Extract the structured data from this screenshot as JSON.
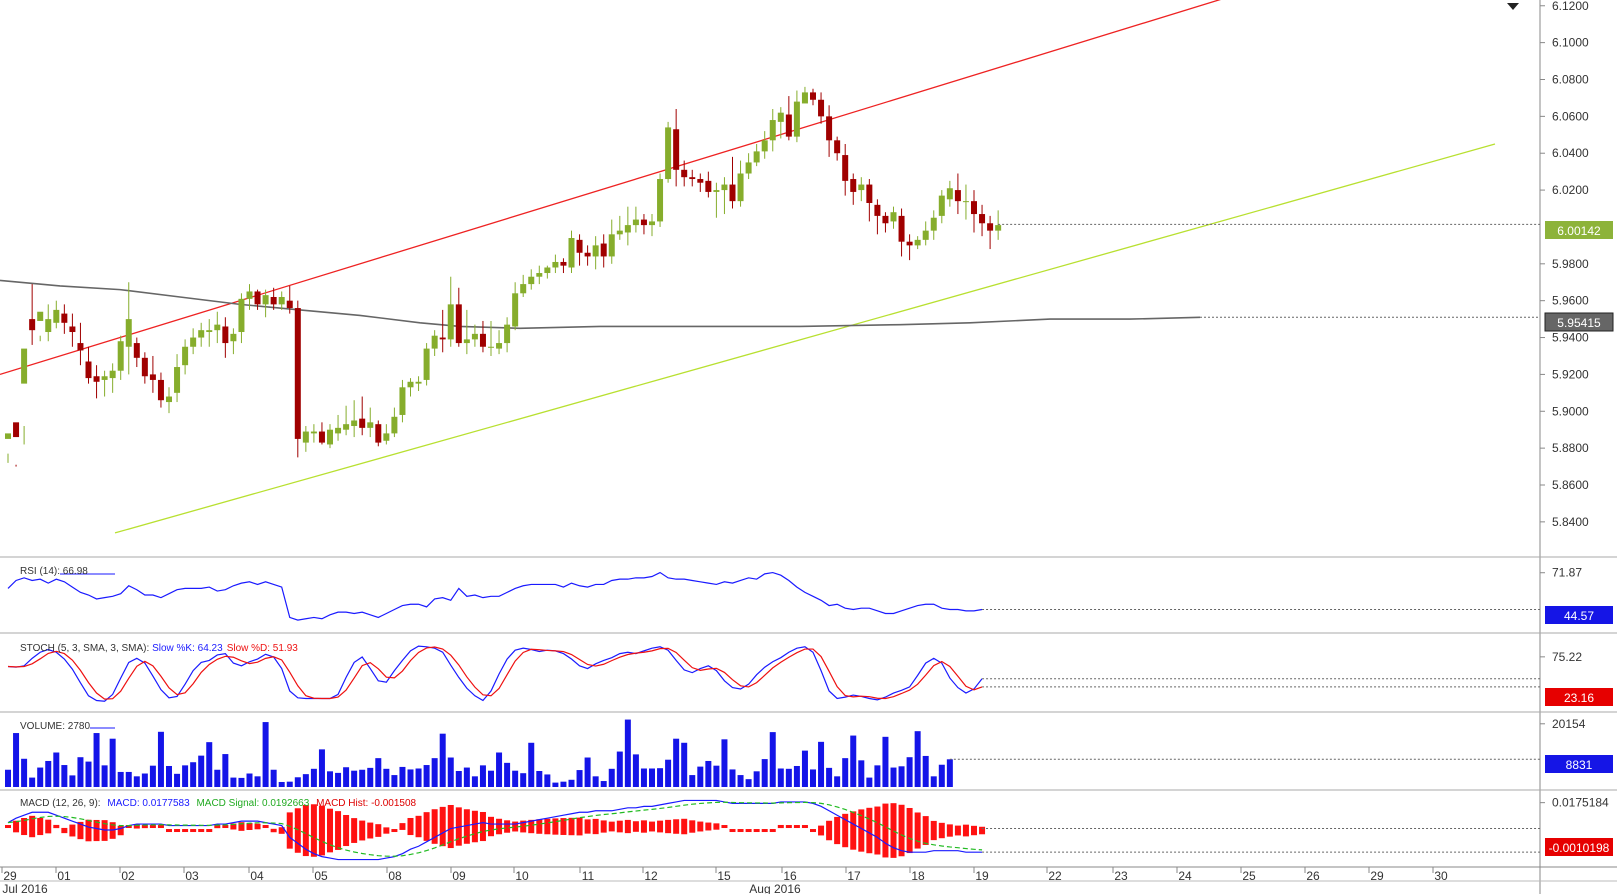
{
  "chart_data": {
    "type": "candlestick",
    "price_axis": {
      "ticks": [
        "6.1200",
        "6.1000",
        "6.0800",
        "6.0600",
        "6.0400",
        "6.0200",
        "5.9800",
        "5.9600",
        "5.9400",
        "5.9200",
        "5.9000",
        "5.8800",
        "5.8600",
        "5.8400"
      ],
      "ylim": [
        5.8345,
        6.1215
      ]
    },
    "last_price": "6.00142",
    "ma_value": "5.95415",
    "candles": [
      [
        5.885,
        5.888,
        5.872,
        5.877
      ],
      [
        5.894,
        5.886,
        5.871,
        5.87
      ],
      [
        5.915,
        5.934,
        5.892,
        5.882
      ],
      [
        5.95,
        5.944,
        5.969,
        5.936
      ],
      [
        5.949,
        5.954,
        5.941,
        5.938
      ],
      [
        5.943,
        5.95,
        5.958,
        5.938
      ],
      [
        5.948,
        5.955,
        5.96,
        5.945
      ],
      [
        5.953,
        5.948,
        5.958,
        5.942
      ],
      [
        5.946,
        5.943,
        5.953,
        5.935
      ],
      [
        5.937,
        5.933,
        5.948,
        5.925
      ],
      [
        5.927,
        5.918,
        5.935,
        5.915
      ],
      [
        5.919,
        5.916,
        5.925,
        5.907
      ],
      [
        5.917,
        5.919,
        5.922,
        5.908
      ],
      [
        5.918,
        5.922,
        5.926,
        5.91
      ],
      [
        5.922,
        5.938,
        5.941,
        5.917
      ],
      [
        5.935,
        5.95,
        5.97,
        5.92
      ],
      [
        5.937,
        5.929,
        5.94,
        5.924
      ],
      [
        5.929,
        5.919,
        5.932,
        5.915
      ],
      [
        5.92,
        5.917,
        5.93,
        5.91
      ],
      [
        5.917,
        5.906,
        5.921,
        5.902
      ],
      [
        5.905,
        5.908,
        5.913,
        5.899
      ],
      [
        5.91,
        5.924,
        5.931,
        5.905
      ],
      [
        5.925,
        5.935,
        5.939,
        5.92
      ],
      [
        5.935,
        5.94,
        5.945,
        5.931
      ],
      [
        5.94,
        5.944,
        5.948,
        5.935
      ],
      [
        5.943,
        5.944,
        5.95,
        5.935
      ],
      [
        5.944,
        5.947,
        5.954,
        5.937
      ],
      [
        5.946,
        5.937,
        5.951,
        5.929
      ],
      [
        5.938,
        5.942,
        5.945,
        5.931
      ],
      [
        5.943,
        5.961,
        5.964,
        5.937
      ],
      [
        5.961,
        5.965,
        5.969,
        5.955
      ],
      [
        5.965,
        5.958,
        5.966,
        5.955
      ],
      [
        5.958,
        5.963,
        5.966,
        5.951
      ],
      [
        5.962,
        5.958,
        5.967,
        5.955
      ],
      [
        5.958,
        5.962,
        5.965,
        5.955
      ],
      [
        5.96,
        5.956,
        5.968,
        5.953
      ],
      [
        5.956,
        5.885,
        5.96,
        5.875
      ],
      [
        5.883,
        5.889,
        5.892,
        5.878
      ],
      [
        5.888,
        5.889,
        5.893,
        5.883
      ],
      [
        5.889,
        5.883,
        5.894,
        5.882
      ],
      [
        5.882,
        5.89,
        5.893,
        5.88
      ],
      [
        5.888,
        5.891,
        5.898,
        5.884
      ],
      [
        5.89,
        5.893,
        5.903,
        5.887
      ],
      [
        5.892,
        5.895,
        5.906,
        5.886
      ],
      [
        5.896,
        5.891,
        5.908,
        5.887
      ],
      [
        5.891,
        5.894,
        5.902,
        5.886
      ],
      [
        5.893,
        5.883,
        5.895,
        5.881
      ],
      [
        5.884,
        5.888,
        5.893,
        5.882
      ],
      [
        5.888,
        5.897,
        5.902,
        5.886
      ],
      [
        5.898,
        5.913,
        5.917,
        5.894
      ],
      [
        5.913,
        5.916,
        5.918,
        5.908
      ],
      [
        5.915,
        5.916,
        5.919,
        5.911
      ],
      [
        5.917,
        5.934,
        5.937,
        5.914
      ],
      [
        5.934,
        5.941,
        5.944,
        5.93
      ],
      [
        5.94,
        5.939,
        5.955,
        5.932
      ],
      [
        5.939,
        5.958,
        5.973,
        5.935
      ],
      [
        5.958,
        5.937,
        5.967,
        5.935
      ],
      [
        5.937,
        5.939,
        5.955,
        5.931
      ],
      [
        5.939,
        5.942,
        5.947,
        5.935
      ],
      [
        5.942,
        5.935,
        5.949,
        5.932
      ],
      [
        5.935,
        5.935,
        5.949,
        5.93
      ],
      [
        5.934,
        5.937,
        5.944,
        5.931
      ],
      [
        5.937,
        5.947,
        5.951,
        5.932
      ],
      [
        5.946,
        5.964,
        5.97,
        5.944
      ],
      [
        5.964,
        5.969,
        5.974,
        5.962
      ],
      [
        5.969,
        5.973,
        5.977,
        5.966
      ],
      [
        5.973,
        5.975,
        5.979,
        5.969
      ],
      [
        5.975,
        5.978,
        5.979,
        5.972
      ],
      [
        5.978,
        5.981,
        5.985,
        5.975
      ],
      [
        5.981,
        5.979,
        5.983,
        5.975
      ],
      [
        5.978,
        5.994,
        5.998,
        5.975
      ],
      [
        5.993,
        5.986,
        5.996,
        5.979
      ],
      [
        5.986,
        5.984,
        5.99,
        5.979
      ],
      [
        5.984,
        5.99,
        5.995,
        5.977
      ],
      [
        5.991,
        5.984,
        5.996,
        5.978
      ],
      [
        5.984,
        5.996,
        6.004,
        5.98
      ],
      [
        5.996,
        5.998,
        6.006,
        5.993
      ],
      [
        5.997,
        6.001,
        6.011,
        5.99
      ],
      [
        6.001,
        6.004,
        6.011,
        5.997
      ],
      [
        6.004,
        6.001,
        6.007,
        5.996
      ],
      [
        6.001,
        6.003,
        6.007,
        5.995
      ],
      [
        6.003,
        6.026,
        6.029,
        6.0
      ],
      [
        6.026,
        6.054,
        6.057,
        6.024
      ],
      [
        6.053,
        6.031,
        6.064,
        6.022
      ],
      [
        6.031,
        6.027,
        6.036,
        6.022
      ],
      [
        6.027,
        6.026,
        6.031,
        6.022
      ],
      [
        6.026,
        6.024,
        6.029,
        6.019
      ],
      [
        6.025,
        6.019,
        6.03,
        6.016
      ],
      [
        6.019,
        6.02,
        6.024,
        6.005
      ],
      [
        6.02,
        6.023,
        6.027,
        6.007
      ],
      [
        6.023,
        6.014,
        6.038,
        6.01
      ],
      [
        6.014,
        6.029,
        6.036,
        6.011
      ],
      [
        6.029,
        6.035,
        6.04,
        6.026
      ],
      [
        6.035,
        6.041,
        6.045,
        6.033
      ],
      [
        6.041,
        6.047,
        6.052,
        6.037
      ],
      [
        6.047,
        6.058,
        6.064,
        6.041
      ],
      [
        6.057,
        6.062,
        6.065,
        6.048
      ],
      [
        6.061,
        6.049,
        6.071,
        6.047
      ],
      [
        6.049,
        6.068,
        6.074,
        6.046
      ],
      [
        6.067,
        6.073,
        6.076,
        6.068
      ],
      [
        6.073,
        6.069,
        6.075,
        6.066
      ],
      [
        6.069,
        6.06,
        6.073,
        6.056
      ],
      [
        6.06,
        6.047,
        6.066,
        6.038
      ],
      [
        6.047,
        6.04,
        6.049,
        6.036
      ],
      [
        6.039,
        6.025,
        6.045,
        6.017
      ],
      [
        6.026,
        6.019,
        6.029,
        6.012
      ],
      [
        6.02,
        6.023,
        6.027,
        6.014
      ],
      [
        6.023,
        6.013,
        6.026,
        6.003
      ],
      [
        6.012,
        6.006,
        6.015,
        5.996
      ],
      [
        6.006,
        6.002,
        6.008,
        5.997
      ],
      [
        6.003,
        6.008,
        6.011,
        5.999
      ],
      [
        6.006,
        5.992,
        6.01,
        5.984
      ],
      [
        5.992,
        5.99,
        5.996,
        5.982
      ],
      [
        5.99,
        5.993,
        5.995,
        5.988
      ],
      [
        5.993,
        5.998,
        6.003,
        5.99
      ],
      [
        5.998,
        6.005,
        6.009,
        5.993
      ],
      [
        6.006,
        6.017,
        6.02,
        6.002
      ],
      [
        6.015,
        6.021,
        6.025,
        6.011
      ],
      [
        6.02,
        6.014,
        6.029,
        6.007
      ],
      [
        6.014,
        6.014,
        6.023,
        6.004
      ],
      [
        6.014,
        6.007,
        6.02,
        5.997
      ],
      [
        6.007,
        6.002,
        6.012,
        5.995
      ],
      [
        6.002,
        5.998,
        6.006,
        5.988
      ],
      [
        5.998,
        6.001,
        6.009,
        5.993
      ]
    ],
    "ma_line": [
      [
        0,
        5.971
      ],
      [
        60,
        5.968
      ],
      [
        120,
        5.966
      ],
      [
        180,
        5.962
      ],
      [
        240,
        5.958
      ],
      [
        300,
        5.955
      ],
      [
        360,
        5.952
      ],
      [
        420,
        5.948
      ],
      [
        460,
        5.946
      ],
      [
        520,
        5.945
      ],
      [
        600,
        5.946
      ],
      [
        700,
        5.946
      ],
      [
        800,
        5.946
      ],
      [
        900,
        5.947
      ],
      [
        970,
        5.948
      ],
      [
        1050,
        5.95
      ],
      [
        1130,
        5.95
      ],
      [
        1200,
        5.951
      ]
    ],
    "channel": {
      "upper": [
        [
          0,
          5.92
        ],
        [
          1230,
          6.125
        ]
      ],
      "lower": [
        [
          115,
          5.834
        ],
        [
          1495,
          6.045
        ]
      ]
    },
    "x_axis": {
      "labels": [
        {
          "x": 10,
          "text": "29"
        },
        {
          "x": 64,
          "text": "01"
        },
        {
          "x": 128,
          "text": "02"
        },
        {
          "x": 192,
          "text": "03"
        },
        {
          "x": 257,
          "text": "04"
        },
        {
          "x": 321,
          "text": "05"
        },
        {
          "x": 395,
          "text": "08"
        },
        {
          "x": 459,
          "text": "09"
        },
        {
          "x": 522,
          "text": "10"
        },
        {
          "x": 588,
          "text": "11"
        },
        {
          "x": 651,
          "text": "12"
        },
        {
          "x": 724,
          "text": "15"
        },
        {
          "x": 790,
          "text": "16"
        },
        {
          "x": 854,
          "text": "17"
        },
        {
          "x": 918,
          "text": "18"
        },
        {
          "x": 982,
          "text": "19"
        },
        {
          "x": 1055,
          "text": "22"
        },
        {
          "x": 1121,
          "text": "23"
        },
        {
          "x": 1185,
          "text": "24"
        },
        {
          "x": 1249,
          "text": "25"
        },
        {
          "x": 1313,
          "text": "26"
        },
        {
          "x": 1377,
          "text": "29"
        },
        {
          "x": 1441,
          "text": "30"
        }
      ],
      "period_labels": [
        {
          "x": 25,
          "text": "Jul 2016"
        },
        {
          "x": 775,
          "text": "Aug 2016"
        }
      ]
    },
    "rsi": {
      "label": "RSI (14): 66.98",
      "tick": "71.87",
      "value_badge": "44.57",
      "values": [
        60,
        66,
        68,
        66,
        67,
        64,
        67,
        65,
        61,
        57,
        55,
        52,
        53,
        54,
        56,
        62,
        59,
        55,
        55,
        53,
        56,
        59,
        60,
        60,
        60,
        61,
        58,
        59,
        62,
        64,
        65,
        63,
        65,
        63,
        61,
        38,
        36,
        37,
        38,
        37,
        40,
        42,
        42,
        41,
        42,
        40,
        38,
        41,
        44,
        47,
        48,
        48,
        46,
        52,
        53,
        51,
        60,
        54,
        55,
        53,
        54,
        54,
        57,
        60,
        62,
        63,
        63,
        63,
        63,
        61,
        64,
        62,
        61,
        63,
        63,
        66,
        67,
        67,
        68,
        68,
        69,
        72,
        68,
        67,
        67,
        66,
        65,
        64,
        63,
        65,
        64,
        66,
        68,
        67,
        71,
        72,
        70,
        66,
        61,
        57,
        54,
        51,
        47,
        48,
        45,
        44,
        45,
        45,
        43,
        41,
        41,
        43,
        45,
        47,
        48,
        48,
        45,
        44,
        44,
        43,
        43,
        44
      ]
    },
    "stoch": {
      "label": "STOCH (5, 3, SMA, 3, SMA): Slow %K: 64.23, Slow %D: 51.93",
      "tick": "75.22",
      "value_badge": "23.16",
      "k": [
        61,
        60,
        62,
        73,
        82,
        86,
        82,
        72,
        57,
        37,
        18,
        11,
        10,
        20,
        44,
        67,
        73,
        66,
        47,
        27,
        15,
        17,
        35,
        55,
        67,
        70,
        78,
        80,
        66,
        62,
        68,
        72,
        79,
        75,
        58,
        25,
        15,
        14,
        14,
        14,
        14,
        20,
        45,
        67,
        75,
        58,
        40,
        38,
        55,
        70,
        84,
        91,
        90,
        88,
        82,
        63,
        45,
        29,
        18,
        11,
        25,
        50,
        72,
        85,
        88,
        86,
        83,
        85,
        84,
        80,
        72,
        62,
        58,
        65,
        70,
        74,
        80,
        82,
        80,
        84,
        88,
        90,
        85,
        70,
        56,
        52,
        58,
        62,
        55,
        40,
        30,
        28,
        35,
        49,
        60,
        68,
        74,
        82,
        88,
        90,
        82,
        55,
        25,
        14,
        16,
        19,
        17,
        14,
        12,
        16,
        22,
        26,
        31,
        48,
        66,
        73,
        66,
        44,
        30,
        22,
        28,
        43
      ]
    },
    "volume": {
      "label": "VOLUME: 2780",
      "tick": "20154",
      "value_badge": "8831",
      "values": [
        5500,
        17200,
        9000,
        3000,
        6200,
        8300,
        11000,
        7000,
        3700,
        9500,
        8100,
        17200,
        6900,
        15400,
        4800,
        4800,
        3400,
        4300,
        6800,
        17600,
        6700,
        4200,
        6900,
        7900,
        10000,
        14300,
        5500,
        10500,
        3000,
        2900,
        4300,
        3400,
        20700,
        5500,
        1600,
        1700,
        3100,
        4100,
        5800,
        12000,
        5000,
        4500,
        6300,
        5200,
        5500,
        6100,
        9200,
        5800,
        3800,
        6400,
        5600,
        5900,
        7000,
        9200,
        17000,
        9400,
        5100,
        6200,
        3400,
        6900,
        5200,
        11000,
        7700,
        5200,
        4400,
        14100,
        5100,
        4000,
        1400,
        1700,
        2300,
        5400,
        9400,
        3400,
        1900,
        5800,
        11300,
        21500,
        10400,
        5900,
        5900,
        6000,
        8700,
        15400,
        14100,
        3800,
        6500,
        8300,
        6800,
        15200,
        5600,
        3800,
        2500,
        5000,
        8900,
        17500,
        5900,
        5800,
        6700,
        11600,
        5600,
        14400,
        6100,
        3400,
        9200,
        16400,
        8500,
        3000,
        6900,
        16000,
        6200,
        6600,
        9500,
        17800,
        9900,
        3400,
        7100,
        8831
      ]
    },
    "macd": {
      "label_prefix": "MACD (12, 26, 9):",
      "macd_label": "MACD: 0.0177583",
      "signal_label": "MACD Signal: 0.0192663",
      "hist_label": "MACD Hist: -0.001508",
      "tick": "0.0175184",
      "value_badge": "-0.0010198",
      "macd": [
        4,
        7,
        9,
        11,
        11,
        11,
        9,
        7,
        5,
        3,
        1,
        0,
        -1,
        -1,
        0,
        2,
        3,
        3,
        3,
        3,
        2,
        2,
        2,
        2,
        2,
        2,
        3,
        3,
        4,
        5,
        5,
        5,
        4,
        3,
        2,
        -6,
        -10,
        -14,
        -17,
        -19,
        -20,
        -21,
        -21,
        -21,
        -21,
        -21,
        -21,
        -20,
        -19,
        -17,
        -14,
        -12,
        -9,
        -6,
        -3,
        0,
        1,
        2,
        3,
        4,
        3,
        3,
        3,
        3,
        4,
        5,
        6,
        7,
        8,
        9,
        10,
        11,
        11,
        12,
        12,
        12,
        13,
        14,
        14,
        15,
        15,
        16,
        17,
        18,
        19,
        19,
        19,
        19,
        19,
        18,
        17,
        17,
        17,
        17,
        17,
        17,
        18,
        18,
        18,
        18,
        17,
        15,
        12,
        9,
        6,
        3,
        0,
        -3,
        -6,
        -10,
        -13,
        -15,
        -16,
        -16,
        -16,
        -15,
        -15,
        -15,
        -15,
        -16,
        -16,
        -16
      ]
    }
  }
}
